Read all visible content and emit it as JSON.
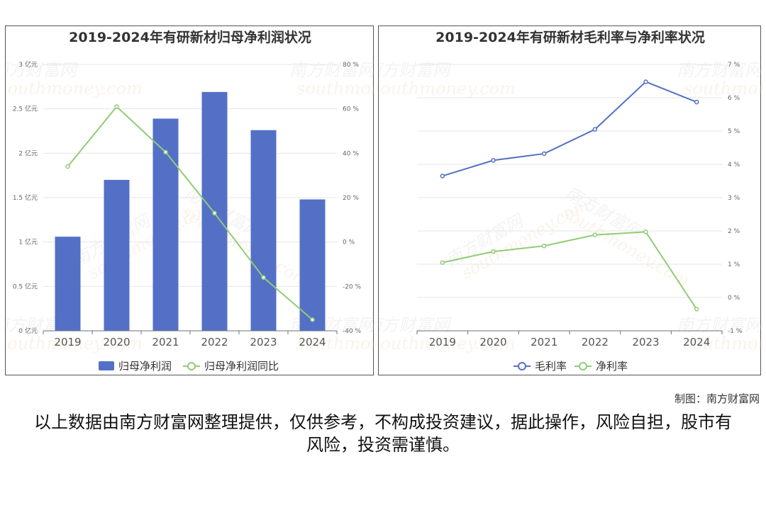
{
  "watermark": {
    "text": "南方财富网",
    "domain": "southmoney.com"
  },
  "credit": "制图：南方财富网",
  "disclaimer": "以上数据由南方财富网整理提供，仅供参考，不构成投资建议，据此操作，风险自担，股市有风险，投资需谨慎。",
  "colors": {
    "bar": "#5470c6",
    "green": "#91cc75",
    "blue": "#5470c6"
  },
  "chart_data": [
    {
      "type": "bar",
      "title": "2019-2024年有研新材归母净利润状况",
      "categories": [
        "2019",
        "2020",
        "2021",
        "2022",
        "2023",
        "2024"
      ],
      "y_left": {
        "min": 0,
        "max": 3,
        "ticks": [
          "0 亿元",
          "0.5 亿元",
          "1 亿元",
          "1.5 亿元",
          "2 亿元",
          "2.5 亿元",
          "3 亿元"
        ]
      },
      "y_right": {
        "min": -40,
        "max": 80,
        "ticks": [
          "-40 %",
          "-20 %",
          "0 %",
          "20 %",
          "40 %",
          "60 %",
          "80 %"
        ]
      },
      "series": [
        {
          "name": "归母净利润",
          "type": "bar",
          "axis": "left",
          "values": [
            1.06,
            1.7,
            2.39,
            2.69,
            2.26,
            1.48
          ]
        },
        {
          "name": "归母净利润同比",
          "type": "line",
          "axis": "right",
          "values": [
            34.0,
            61.0,
            40.5,
            13.0,
            -16.0,
            -35.0
          ]
        }
      ],
      "legend": "bottom-center"
    },
    {
      "type": "line",
      "title": "2019-2024年有研新材毛利率与净利率状况",
      "categories": [
        "2019",
        "2020",
        "2021",
        "2022",
        "2023",
        "2024"
      ],
      "y_right": {
        "min": -1,
        "max": 7,
        "ticks": [
          "-1 %",
          "0 %",
          "1 %",
          "2 %",
          "3 %",
          "4 %",
          "5 %",
          "6 %",
          "7 %"
        ]
      },
      "series": [
        {
          "name": "毛利率",
          "values": [
            3.65,
            4.12,
            4.32,
            5.05,
            6.48,
            5.87
          ]
        },
        {
          "name": "净利率",
          "values": [
            1.05,
            1.38,
            1.55,
            1.88,
            1.97,
            -0.35
          ]
        }
      ],
      "legend": "bottom-center"
    }
  ]
}
